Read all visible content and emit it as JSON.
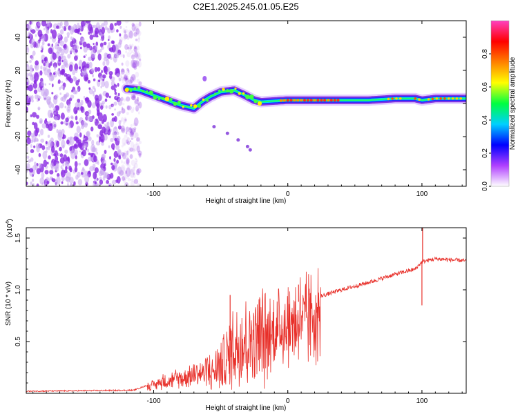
{
  "title": "C2E1.2025.245.01.05.E25",
  "chart_data": [
    {
      "type": "heatmap",
      "name": "spectrogram",
      "xlabel": "Height of straight line (km)",
      "ylabel": "Frequency (Hz)",
      "xlim": [
        -195,
        133
      ],
      "ylim": [
        -50,
        50
      ],
      "xticks": [
        -100,
        0,
        100
      ],
      "xtick_labels": [
        "-100",
        "0",
        "100"
      ],
      "yticks": [
        -40,
        -20,
        0,
        20,
        40
      ],
      "ytick_labels": [
        "-40",
        "-20",
        "0",
        "20",
        "40"
      ],
      "colorbar": {
        "label": "Normalized spectral amplitude",
        "range": [
          0,
          1
        ],
        "ticks": [
          0.0,
          0.2,
          0.4,
          0.6,
          0.8
        ],
        "tick_labels": [
          "0.0",
          "0.2",
          "0.4",
          "0.6",
          "0.8"
        ],
        "colors": [
          "#ffffff",
          "#b040ff",
          "#0000ff",
          "#00d0ff",
          "#00ff40",
          "#ffff00",
          "#ff8000",
          "#ff0000",
          "#ff40c0"
        ]
      },
      "ridge": {
        "x": [
          -120,
          -110,
          -100,
          -90,
          -80,
          -70,
          -64,
          -58,
          -50,
          -40,
          -32,
          -25,
          -20,
          0,
          20,
          40,
          60,
          80,
          95,
          100,
          110,
          133
        ],
        "y": [
          9,
          8,
          5,
          2,
          -1,
          -3,
          1,
          4,
          7,
          8,
          5,
          2,
          1,
          2,
          2,
          2,
          2,
          3,
          3,
          2,
          3,
          3
        ]
      },
      "noise_region_x": [
        -195,
        -110
      ],
      "branch": {
        "x": [
          -55,
          -45,
          -37,
          -30,
          -28
        ],
        "y": [
          -14,
          -18,
          -22,
          -26,
          -28
        ]
      }
    },
    {
      "type": "line",
      "name": "snr",
      "xlabel": "Height of straight line (km)",
      "ylabel": "SNR (10 * v/v)",
      "multiplier": "(x10",
      "multiplier_exp": "4",
      "multiplier_close": ")",
      "xlim": [
        -195,
        133
      ],
      "ylim": [
        0,
        1.6
      ],
      "xticks": [
        -100,
        0,
        100
      ],
      "xtick_labels": [
        "-100",
        "0",
        "100"
      ],
      "yticks": [
        0.5,
        1.0,
        1.5
      ],
      "ytick_labels": [
        "0.5",
        "1.0",
        "1.5"
      ],
      "color": "#e8302a",
      "envelope": {
        "x": [
          -195,
          -115,
          -100,
          -90,
          -70,
          -55,
          -45,
          -40,
          -30,
          -20,
          -10,
          0,
          10,
          20,
          40,
          60,
          80,
          95,
          100,
          110,
          133
        ],
        "y": [
          0.02,
          0.03,
          0.1,
          0.16,
          0.22,
          0.3,
          0.45,
          0.6,
          0.65,
          0.7,
          0.75,
          0.82,
          0.9,
          0.92,
          1.0,
          1.07,
          1.15,
          1.2,
          1.27,
          1.3,
          1.28
        ]
      },
      "spikes": [
        {
          "x": 100.5,
          "y": 1.6
        },
        {
          "x": 100,
          "y": 0.85
        },
        {
          "x": -43,
          "y": 0.95
        },
        {
          "x": 8,
          "y": 1.05
        }
      ]
    }
  ]
}
